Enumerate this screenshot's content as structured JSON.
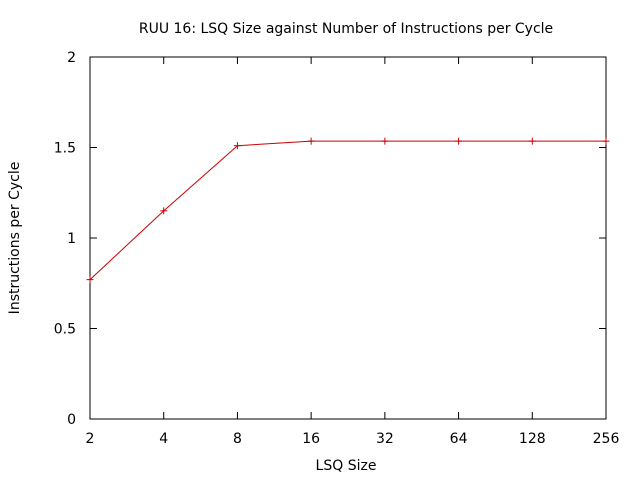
{
  "chart_data": {
    "type": "line",
    "title": "RUU 16: LSQ Size against Number of Instructions per Cycle",
    "xlabel": "LSQ Size",
    "ylabel": "Instructions per Cycle",
    "categories": [
      "2",
      "4",
      "8",
      "16",
      "32",
      "64",
      "128",
      "256"
    ],
    "x_scale": "log2",
    "ylim": [
      0,
      2
    ],
    "yticks": [
      "0",
      "0.5",
      "1",
      "1.5",
      "2"
    ],
    "grid": false,
    "series": [
      {
        "values": [
          0.77,
          1.15,
          1.51,
          1.535,
          1.535,
          1.535,
          1.535,
          1.535
        ],
        "color": "#cc0000",
        "marker": "plus"
      }
    ]
  }
}
